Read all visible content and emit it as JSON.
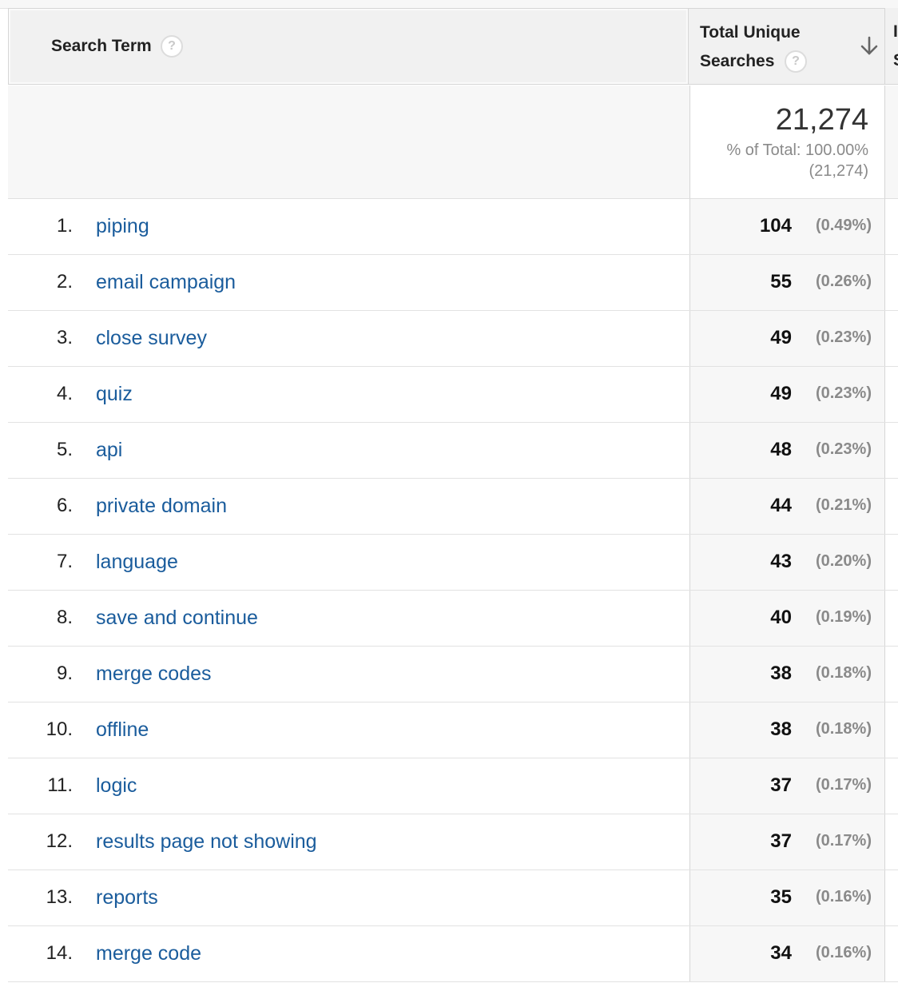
{
  "header": {
    "search_term_label": "Search Term",
    "metric_label_line1": "Total Unique",
    "metric_label_line2": "Searches",
    "help_glyph": "?",
    "next_column_line1": "I",
    "next_column_line2": "S",
    "sort_icon": "arrow-down-icon"
  },
  "totals": {
    "value": "21,274",
    "percent_of_total": "% of Total: 100.00%",
    "absolute": "(21,274)"
  },
  "rows": [
    {
      "index": "1.",
      "term": "piping",
      "value": "104",
      "percent": "(0.49%)"
    },
    {
      "index": "2.",
      "term": "email campaign",
      "value": "55",
      "percent": "(0.26%)"
    },
    {
      "index": "3.",
      "term": "close survey",
      "value": "49",
      "percent": "(0.23%)"
    },
    {
      "index": "4.",
      "term": "quiz",
      "value": "49",
      "percent": "(0.23%)"
    },
    {
      "index": "5.",
      "term": "api",
      "value": "48",
      "percent": "(0.23%)"
    },
    {
      "index": "6.",
      "term": "private domain",
      "value": "44",
      "percent": "(0.21%)"
    },
    {
      "index": "7.",
      "term": "language",
      "value": "43",
      "percent": "(0.20%)"
    },
    {
      "index": "8.",
      "term": "save and continue",
      "value": "40",
      "percent": "(0.19%)"
    },
    {
      "index": "9.",
      "term": "merge codes",
      "value": "38",
      "percent": "(0.18%)"
    },
    {
      "index": "10.",
      "term": "offline",
      "value": "38",
      "percent": "(0.18%)"
    },
    {
      "index": "11.",
      "term": "logic",
      "value": "37",
      "percent": "(0.17%)"
    },
    {
      "index": "12.",
      "term": "results page not showing",
      "value": "37",
      "percent": "(0.17%)"
    },
    {
      "index": "13.",
      "term": "reports",
      "value": "35",
      "percent": "(0.16%)"
    },
    {
      "index": "14.",
      "term": "merge code",
      "value": "34",
      "percent": "(0.16%)"
    }
  ],
  "colors": {
    "link": "#1a5c9c",
    "header_bg": "#f1f1f1",
    "metric_bg": "#f7f7f7",
    "muted_text": "#8a8a8a"
  }
}
